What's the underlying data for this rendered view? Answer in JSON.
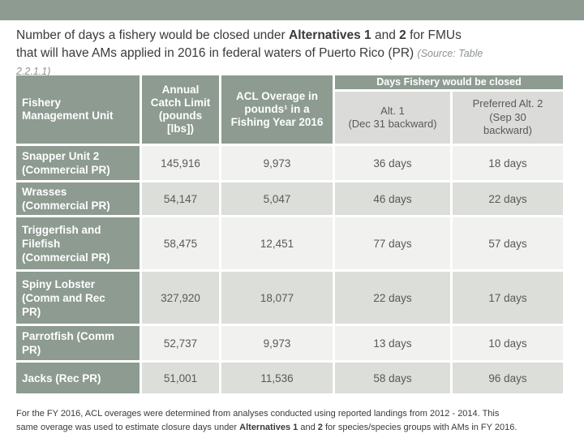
{
  "slide": {
    "title": {
      "t1": "Number of days a fishery would be closed under ",
      "t2": "Alternatives 1",
      "t3": " and ",
      "t4": "2",
      "t5": " for FMUs",
      "t6": "that will have AMs applied in 2016 in federal waters of Puerto Rico (PR) ",
      "source_line1": "(Source: Table",
      "source_line2": "2.2.1.1)"
    },
    "footnote": {
      "f1": "For the FY 2016, ACL overages were determined from analyses conducted using reported landings from 2012 - 2014.  This",
      "f2": "same overage was used to estimate closure days under ",
      "f3": "Alternatives 1",
      "f4": " and ",
      "f5": "2",
      "f6": " for species/species groups with AMs in FY 2016."
    }
  },
  "table": {
    "headers": {
      "fmu": [
        "Fishery",
        "Management Unit"
      ],
      "acl": [
        "Annual",
        "Catch Limit",
        "(pounds",
        "[lbs])"
      ],
      "overage": [
        "ACL Overage in",
        "pounds¹ in a",
        "Fishing Year 2016"
      ],
      "days_group": "Days Fishery would be closed",
      "alt1": [
        "Alt. 1",
        "(Dec 31 backward)"
      ],
      "alt2": [
        "Preferred Alt. 2",
        "(Sep 30",
        "backward)"
      ]
    },
    "rows": [
      {
        "fmu": [
          "Snapper Unit 2",
          "(Commercial PR)"
        ],
        "acl": "145,916",
        "overage": "9,973",
        "alt1_days": "36 days",
        "alt2_days": "18 days"
      },
      {
        "fmu": [
          "Wrasses",
          "(Commercial PR)"
        ],
        "acl": "54,147",
        "overage": "5,047",
        "alt1_days": "46 days",
        "alt2_days": "22 days"
      },
      {
        "fmu": [
          "Triggerfish and",
          "Filefish",
          "(Commercial PR)"
        ],
        "acl": "58,475",
        "overage": "12,451",
        "alt1_days": "77 days",
        "alt2_days": "57 days"
      },
      {
        "fmu": [
          "Spiny Lobster",
          "(Comm and Rec",
          "PR)"
        ],
        "acl": "327,920",
        "overage": "18,077",
        "alt1_days": "22 days",
        "alt2_days": "17 days"
      },
      {
        "fmu": [
          "Parrotfish (Comm",
          "PR)"
        ],
        "acl": "52,737",
        "overage": "9,973",
        "alt1_days": "13 days",
        "alt2_days": "10 days"
      },
      {
        "fmu": [
          "Jacks (Rec PR)"
        ],
        "acl": "51,001",
        "overage": "11,536",
        "alt1_days": "58 days",
        "alt2_days": "96 days"
      }
    ]
  },
  "colors": {
    "header_green": "#8d9b91",
    "row_light": "#f1f1ef",
    "row_dark": "#dcdeda",
    "subheader_gray": "#dbdcd9",
    "body_text": "#595959",
    "title_text": "#3a3a3a",
    "source_text": "#8d948e"
  }
}
